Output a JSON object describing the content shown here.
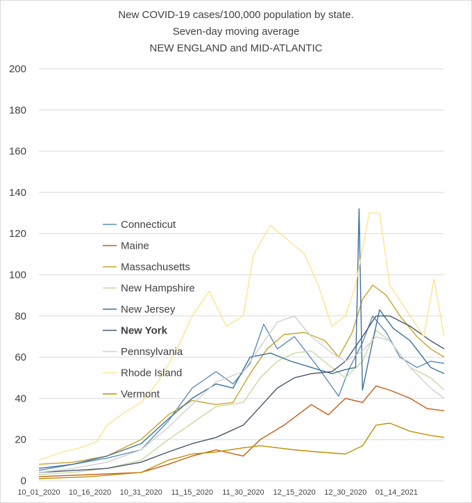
{
  "chart_data": {
    "type": "line",
    "title": [
      "New COVID-19 cases/100,000 population by state.",
      "Seven-day moving average",
      "NEW ENGLAND and MID-ATLANTIC"
    ],
    "xlabel": "",
    "ylabel": "",
    "ylim": [
      0,
      200
    ],
    "yticks": [
      0,
      20,
      40,
      60,
      80,
      100,
      120,
      140,
      160,
      180,
      200
    ],
    "x_range": [
      "2020-10-01",
      "2021-01-28"
    ],
    "xtick_labels": [
      "10_01_2020",
      "10_16_2020",
      "10_31_2020",
      "11_15_2020",
      "11_30_2020",
      "12_15_2020",
      "12_30_2020",
      "01_14_2021"
    ],
    "xtick_dates": [
      "2020-10-01",
      "2020-10-16",
      "2020-10-31",
      "2020-11-15",
      "2020-11-30",
      "2020-12-15",
      "2020-12-30",
      "2021-01-14"
    ],
    "grid": "horizontal",
    "legend_position": "inside-left",
    "series": [
      {
        "name": "Connecticut",
        "color": "#5b8db8",
        "dashed": false,
        "points": [
          [
            "2020-10-01",
            5
          ],
          [
            "2020-10-11",
            8
          ],
          [
            "2020-10-21",
            11
          ],
          [
            "2020-10-31",
            15
          ],
          [
            "2020-11-08",
            29
          ],
          [
            "2020-11-15",
            45
          ],
          [
            "2020-11-22",
            53
          ],
          [
            "2020-11-27",
            47
          ],
          [
            "2020-12-02",
            57
          ],
          [
            "2020-12-06",
            76
          ],
          [
            "2020-12-10",
            64
          ],
          [
            "2020-12-15",
            70
          ],
          [
            "2020-12-22",
            55
          ],
          [
            "2020-12-28",
            41
          ],
          [
            "2020-12-31",
            54
          ],
          [
            "2021-01-04",
            67
          ],
          [
            "2021-01-07",
            80
          ],
          [
            "2021-01-11",
            72
          ],
          [
            "2021-01-15",
            60
          ],
          [
            "2021-01-20",
            55
          ],
          [
            "2021-01-24",
            58
          ],
          [
            "2021-01-28",
            57
          ]
        ]
      },
      {
        "name": "Maine",
        "color": "#c55a11",
        "dashed": false,
        "points": [
          [
            "2020-10-01",
            2
          ],
          [
            "2020-10-16",
            3
          ],
          [
            "2020-10-31",
            4
          ],
          [
            "2020-11-08",
            8
          ],
          [
            "2020-11-15",
            12
          ],
          [
            "2020-11-22",
            15
          ],
          [
            "2020-11-30",
            12
          ],
          [
            "2020-12-05",
            20
          ],
          [
            "2020-12-12",
            27
          ],
          [
            "2020-12-20",
            37
          ],
          [
            "2020-12-25",
            32
          ],
          [
            "2020-12-30",
            40
          ],
          [
            "2021-01-04",
            38
          ],
          [
            "2021-01-08",
            46
          ],
          [
            "2021-01-12",
            44
          ],
          [
            "2021-01-18",
            40
          ],
          [
            "2021-01-23",
            35
          ],
          [
            "2021-01-28",
            34
          ]
        ]
      },
      {
        "name": "Massachusetts",
        "color": "#c9a227",
        "dashed": false,
        "points": [
          [
            "2020-10-01",
            8
          ],
          [
            "2020-10-11",
            9
          ],
          [
            "2020-10-21",
            12
          ],
          [
            "2020-10-31",
            20
          ],
          [
            "2020-11-08",
            32
          ],
          [
            "2020-11-15",
            39
          ],
          [
            "2020-11-22",
            37
          ],
          [
            "2020-11-27",
            38
          ],
          [
            "2020-12-02",
            52
          ],
          [
            "2020-12-07",
            64
          ],
          [
            "2020-12-12",
            71
          ],
          [
            "2020-12-18",
            72
          ],
          [
            "2020-12-24",
            68
          ],
          [
            "2020-12-28",
            60
          ],
          [
            "2021-01-01",
            72
          ],
          [
            "2021-01-04",
            88
          ],
          [
            "2021-01-07",
            95
          ],
          [
            "2021-01-11",
            90
          ],
          [
            "2021-01-15",
            80
          ],
          [
            "2021-01-20",
            70
          ],
          [
            "2021-01-24",
            64
          ],
          [
            "2021-01-28",
            60
          ]
        ]
      },
      {
        "name": "New Hampshire",
        "color": "#c5dba1",
        "dashed": false,
        "points": [
          [
            "2020-10-01",
            3
          ],
          [
            "2020-10-11",
            4
          ],
          [
            "2020-10-21",
            6
          ],
          [
            "2020-10-31",
            10
          ],
          [
            "2020-11-08",
            20
          ],
          [
            "2020-11-15",
            28
          ],
          [
            "2020-11-22",
            36
          ],
          [
            "2020-11-30",
            38
          ],
          [
            "2020-12-05",
            50
          ],
          [
            "2020-12-10",
            58
          ],
          [
            "2020-12-15",
            62
          ],
          [
            "2020-12-20",
            63
          ],
          [
            "2020-12-26",
            55
          ],
          [
            "2020-12-30",
            50
          ],
          [
            "2021-01-04",
            58
          ],
          [
            "2021-01-08",
            73
          ],
          [
            "2021-01-12",
            68
          ],
          [
            "2021-01-18",
            55
          ],
          [
            "2021-01-24",
            50
          ],
          [
            "2021-01-28",
            44
          ]
        ]
      },
      {
        "name": "New Jersey",
        "color": "#3a6f9b",
        "dashed": false,
        "points": [
          [
            "2020-10-01",
            6
          ],
          [
            "2020-10-11",
            8
          ],
          [
            "2020-10-21",
            12
          ],
          [
            "2020-10-31",
            18
          ],
          [
            "2020-11-08",
            30
          ],
          [
            "2020-11-15",
            40
          ],
          [
            "2020-11-22",
            47
          ],
          [
            "2020-11-27",
            45
          ],
          [
            "2020-12-02",
            60
          ],
          [
            "2020-12-08",
            62
          ],
          [
            "2020-12-14",
            58
          ],
          [
            "2020-12-20",
            55
          ],
          [
            "2020-12-26",
            52
          ],
          [
            "2020-12-30",
            54
          ],
          [
            "2021-01-02",
            55
          ],
          [
            "2021-01-03",
            132
          ],
          [
            "2021-01-04",
            44
          ],
          [
            "2021-01-06",
            60
          ],
          [
            "2021-01-09",
            83
          ],
          [
            "2021-01-13",
            74
          ],
          [
            "2021-01-18",
            68
          ],
          [
            "2021-01-24",
            55
          ],
          [
            "2021-01-28",
            52
          ]
        ]
      },
      {
        "name": "New York",
        "color": "#44546a",
        "dashed": false,
        "points": [
          [
            "2020-10-01",
            4
          ],
          [
            "2020-10-11",
            5
          ],
          [
            "2020-10-21",
            6
          ],
          [
            "2020-10-31",
            9
          ],
          [
            "2020-11-08",
            14
          ],
          [
            "2020-11-15",
            18
          ],
          [
            "2020-11-22",
            21
          ],
          [
            "2020-11-30",
            27
          ],
          [
            "2020-12-05",
            36
          ],
          [
            "2020-12-10",
            45
          ],
          [
            "2020-12-15",
            50
          ],
          [
            "2020-12-20",
            52
          ],
          [
            "2020-12-26",
            53
          ],
          [
            "2020-12-30",
            58
          ],
          [
            "2021-01-04",
            70
          ],
          [
            "2021-01-08",
            80
          ],
          [
            "2021-01-12",
            80
          ],
          [
            "2021-01-18",
            75
          ],
          [
            "2021-01-24",
            68
          ],
          [
            "2021-01-28",
            64
          ]
        ]
      },
      {
        "name": "Pennsylvania",
        "color": "#d0d0d0",
        "dashed": false,
        "points": [
          [
            "2020-10-01",
            4
          ],
          [
            "2020-10-11",
            6
          ],
          [
            "2020-10-21",
            9
          ],
          [
            "2020-10-31",
            15
          ],
          [
            "2020-11-08",
            26
          ],
          [
            "2020-11-15",
            37
          ],
          [
            "2020-11-22",
            48
          ],
          [
            "2020-11-30",
            53
          ],
          [
            "2020-12-05",
            65
          ],
          [
            "2020-12-10",
            77
          ],
          [
            "2020-12-15",
            80
          ],
          [
            "2020-12-20",
            70
          ],
          [
            "2020-12-26",
            62
          ],
          [
            "2020-12-30",
            58
          ],
          [
            "2021-01-04",
            63
          ],
          [
            "2021-01-08",
            70
          ],
          [
            "2021-01-12",
            68
          ],
          [
            "2021-01-18",
            55
          ],
          [
            "2021-01-24",
            45
          ],
          [
            "2021-01-28",
            40
          ]
        ]
      },
      {
        "name": "Rhode Island",
        "color": "#ffe38a",
        "dashed": false,
        "points": [
          [
            "2020-10-01",
            10
          ],
          [
            "2020-10-08",
            14
          ],
          [
            "2020-10-13",
            16
          ],
          [
            "2020-10-18",
            19
          ],
          [
            "2020-10-21",
            27
          ],
          [
            "2020-10-26",
            33
          ],
          [
            "2020-10-31",
            38
          ],
          [
            "2020-11-05",
            48
          ],
          [
            "2020-11-10",
            62
          ],
          [
            "2020-11-15",
            80
          ],
          [
            "2020-11-20",
            92
          ],
          [
            "2020-11-25",
            75
          ],
          [
            "2020-11-30",
            80
          ],
          [
            "2020-12-03",
            110
          ],
          [
            "2020-12-08",
            124
          ],
          [
            "2020-12-13",
            117
          ],
          [
            "2020-12-18",
            110
          ],
          [
            "2020-12-22",
            95
          ],
          [
            "2020-12-26",
            75
          ],
          [
            "2020-12-30",
            80
          ],
          [
            "2021-01-02",
            95
          ],
          [
            "2021-01-06",
            130
          ],
          [
            "2021-01-09",
            130
          ],
          [
            "2021-01-12",
            95
          ],
          [
            "2021-01-18",
            80
          ],
          [
            "2021-01-22",
            70
          ],
          [
            "2021-01-25",
            98
          ],
          [
            "2021-01-28",
            70
          ]
        ]
      },
      {
        "name": "Vermont",
        "color": "#bf8f00",
        "dashed": false,
        "points": [
          [
            "2020-10-01",
            1
          ],
          [
            "2020-10-16",
            2
          ],
          [
            "2020-10-31",
            4
          ],
          [
            "2020-11-08",
            10
          ],
          [
            "2020-11-15",
            13
          ],
          [
            "2020-11-22",
            14
          ],
          [
            "2020-11-30",
            16
          ],
          [
            "2020-12-05",
            17
          ],
          [
            "2020-12-10",
            16
          ],
          [
            "2020-12-15",
            15
          ],
          [
            "2020-12-22",
            14
          ],
          [
            "2020-12-30",
            13
          ],
          [
            "2021-01-04",
            17
          ],
          [
            "2021-01-08",
            27
          ],
          [
            "2021-01-12",
            28
          ],
          [
            "2021-01-18",
            24
          ],
          [
            "2021-01-24",
            22
          ],
          [
            "2021-01-28",
            21
          ]
        ]
      }
    ]
  }
}
